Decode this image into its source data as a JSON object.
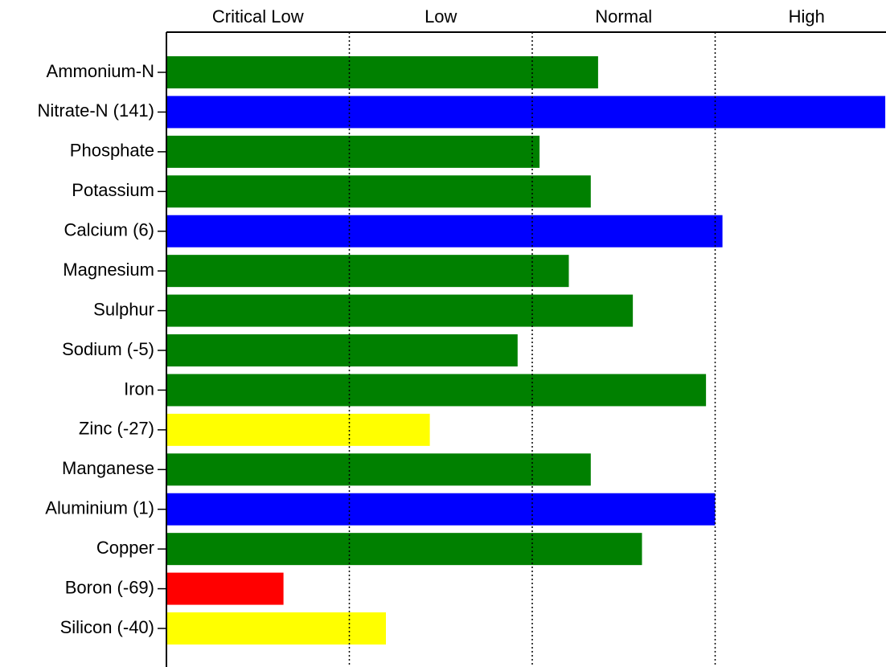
{
  "chart_data": {
    "type": "barh",
    "zones": [
      "Critical Low",
      "Low",
      "Normal",
      "High"
    ],
    "categories": [
      "Ammonium-N",
      "Nitrate-N (141)",
      "Phosphate",
      "Potassium",
      "Calcium (6)",
      "Magnesium",
      "Sulphur",
      "Sodium (-5)",
      "Iron",
      "Zinc (-27)",
      "Manganese",
      "Aluminium (1)",
      "Copper",
      "Boron (-69)",
      "Silicon (-40)"
    ],
    "values": [
      2.36,
      3.93,
      2.04,
      2.32,
      3.04,
      2.2,
      2.55,
      1.92,
      2.95,
      1.44,
      2.32,
      3.0,
      2.6,
      0.64,
      1.2
    ],
    "colors": [
      "#008000",
      "#0000ff",
      "#008000",
      "#008000",
      "#0000ff",
      "#008000",
      "#008000",
      "#008000",
      "#008000",
      "#ffff00",
      "#008000",
      "#0000ff",
      "#008000",
      "#ff0000",
      "#ffff00"
    ],
    "xlim": [
      0,
      4
    ],
    "xticks": [
      1,
      2,
      3
    ],
    "grid": true
  }
}
